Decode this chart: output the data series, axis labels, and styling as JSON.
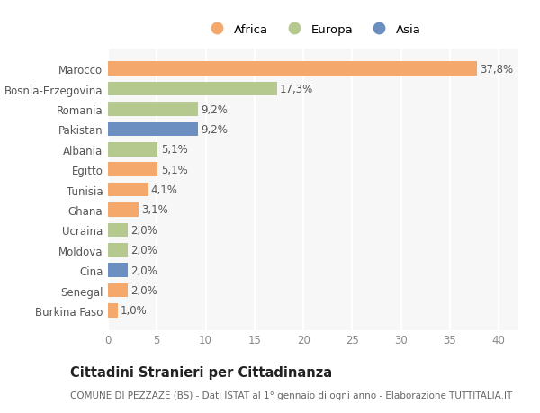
{
  "categories": [
    "Burkina Faso",
    "Senegal",
    "Cina",
    "Moldova",
    "Ucraina",
    "Ghana",
    "Tunisia",
    "Egitto",
    "Albania",
    "Pakistan",
    "Romania",
    "Bosnia-Erzegovina",
    "Marocco"
  ],
  "values": [
    1.0,
    2.0,
    2.0,
    2.0,
    2.0,
    3.1,
    4.1,
    5.1,
    5.1,
    9.2,
    9.2,
    17.3,
    37.8
  ],
  "labels": [
    "1,0%",
    "2,0%",
    "2,0%",
    "2,0%",
    "2,0%",
    "3,1%",
    "4,1%",
    "5,1%",
    "5,1%",
    "9,2%",
    "9,2%",
    "17,3%",
    "37,8%"
  ],
  "continents": [
    "Africa",
    "Africa",
    "Asia",
    "Europa",
    "Europa",
    "Africa",
    "Africa",
    "Africa",
    "Europa",
    "Asia",
    "Europa",
    "Europa",
    "Africa"
  ],
  "colors": {
    "Africa": "#F5A86B",
    "Europa": "#B5C98E",
    "Asia": "#6B8FC0"
  },
  "legend_order": [
    "Africa",
    "Europa",
    "Asia"
  ],
  "title": "Cittadini Stranieri per Cittadinanza",
  "subtitle": "COMUNE DI PEZZAZE (BS) - Dati ISTAT al 1° gennaio di ogni anno - Elaborazione TUTTITALIA.IT",
  "xlim": [
    0,
    42
  ],
  "xticks": [
    0,
    5,
    10,
    15,
    20,
    25,
    30,
    35,
    40
  ],
  "background_color": "#ffffff",
  "plot_background": "#f7f7f7",
  "grid_color": "#ffffff",
  "bar_height": 0.7,
  "label_fontsize": 8.5,
  "tick_fontsize": 8.5,
  "ylabel_fontsize": 8.5,
  "title_fontsize": 10.5,
  "subtitle_fontsize": 7.5
}
